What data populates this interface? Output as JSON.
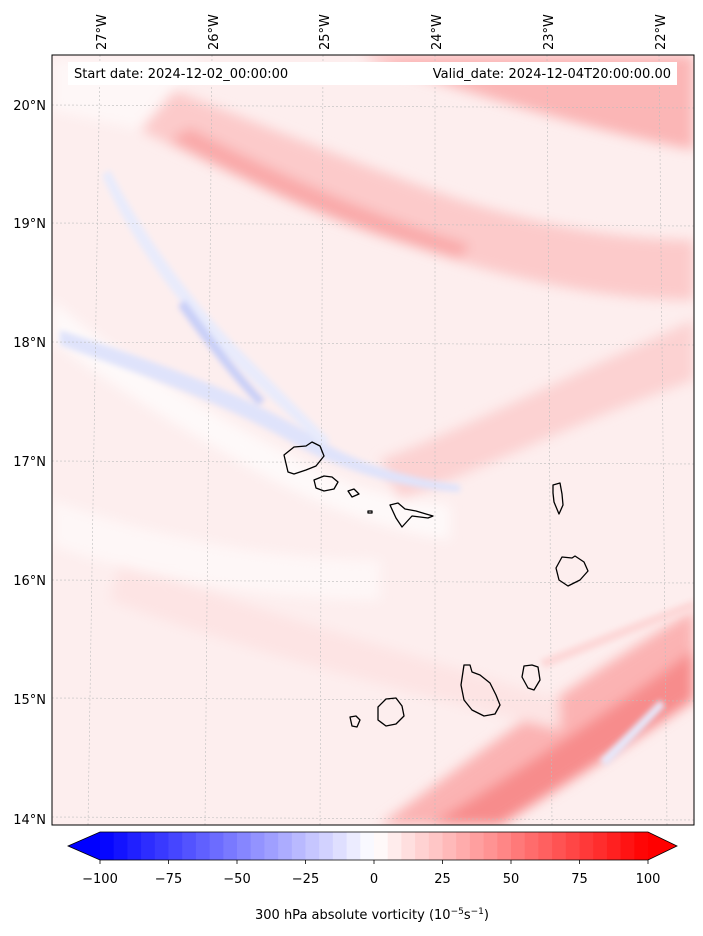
{
  "header": {
    "start_label": "Start date: 2024-12-02_00:00:00",
    "valid_label": "Valid_date: 2024-12-04T20:00:00.00"
  },
  "longitude_ticks": [
    "27°W",
    "26°W",
    "25°W",
    "24°W",
    "23°W",
    "22°W"
  ],
  "latitude_ticks": [
    "20°N",
    "19°N",
    "18°N",
    "17°N",
    "16°N",
    "15°N",
    "14°N"
  ],
  "colorbar": {
    "ticks": [
      "−100",
      "−75",
      "−50",
      "−25",
      "0",
      "25",
      "50",
      "75",
      "100"
    ],
    "label": "300 hPa absolute vorticity (10",
    "label_exp1": "−5",
    "label_mid": "s",
    "label_exp2": "−1",
    "label_end": ")",
    "min_color": "#0000ff",
    "mid_color": "#ffffff",
    "max_color": "#ff0000"
  },
  "colors": {
    "frame": "#000000",
    "grid": "#bdbdbd",
    "coast": "#000000"
  }
}
